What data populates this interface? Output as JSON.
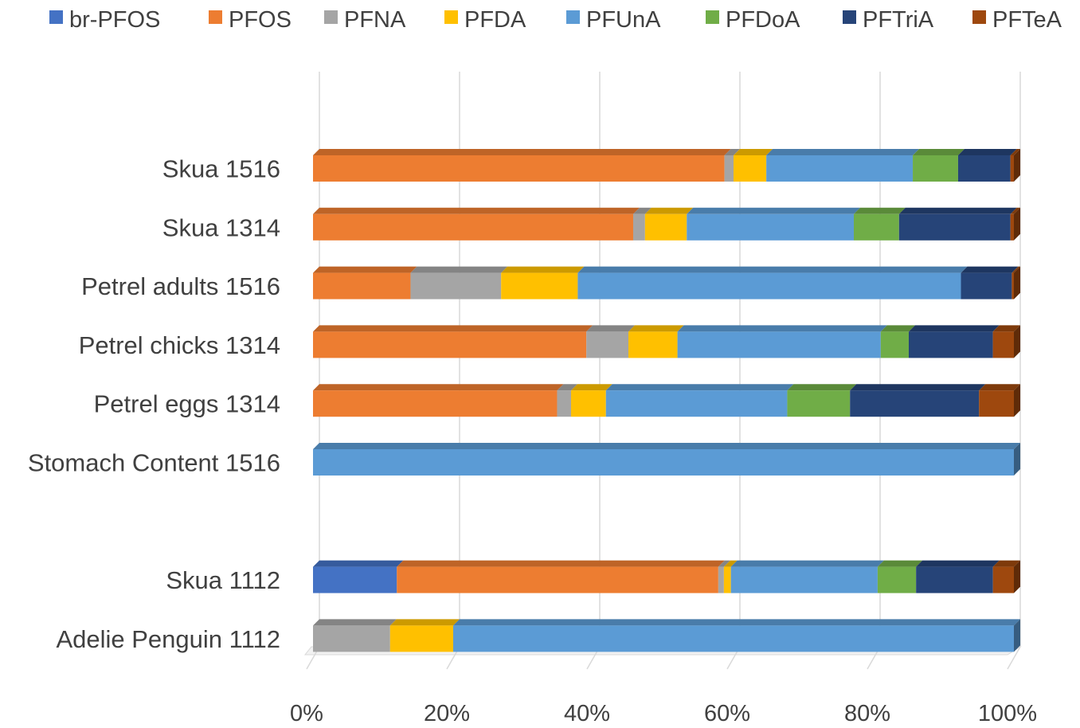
{
  "chart_data": {
    "type": "bar",
    "orientation": "horizontal",
    "stacked": "percent",
    "title": "",
    "xlabel": "",
    "ylabel": "",
    "xlim": [
      0,
      100
    ],
    "grid": true,
    "legend_position": "top",
    "x_ticks": [
      "0%",
      "20%",
      "40%",
      "60%",
      "80%",
      "100%"
    ],
    "categories": [
      "Skua 1516",
      "Skua 1314",
      "Petrel adults 1516",
      "Petrel chicks 1314",
      "Petrel eggs 1314",
      "Stomach Content 1516",
      "",
      "Skua 1112",
      "Adelie Penguin 1112"
    ],
    "series": [
      {
        "name": "br-PFOS",
        "color": "#4472C4",
        "values": [
          0,
          0,
          0,
          0,
          0,
          0,
          0,
          12,
          0
        ]
      },
      {
        "name": "PFOS",
        "color": "#ED7D31",
        "values": [
          59,
          46,
          14,
          39,
          35,
          0,
          0,
          46,
          0
        ]
      },
      {
        "name": "PFNA",
        "color": "#A5A5A5",
        "values": [
          1.3,
          1.7,
          13,
          6,
          2,
          0,
          0,
          0.8,
          11
        ]
      },
      {
        "name": "PFDA",
        "color": "#FFC000",
        "values": [
          4.7,
          6,
          11,
          7,
          5,
          0,
          0,
          1,
          9
        ]
      },
      {
        "name": "PFUnA",
        "color": "#5B9BD5",
        "values": [
          21,
          24,
          55,
          29,
          26,
          100,
          0,
          21,
          80
        ]
      },
      {
        "name": "PFDoA",
        "color": "#70AD47",
        "values": [
          6.5,
          6.5,
          0,
          4,
          9,
          0,
          0,
          5.5,
          0
        ]
      },
      {
        "name": "PFTriA",
        "color": "#264478",
        "values": [
          7.5,
          16,
          7.3,
          12,
          18.5,
          0,
          0,
          11,
          0
        ]
      },
      {
        "name": "PFTeA",
        "color": "#9E480E",
        "values": [
          0.5,
          0.5,
          0.3,
          3,
          5,
          0,
          0,
          3,
          0
        ]
      }
    ]
  }
}
